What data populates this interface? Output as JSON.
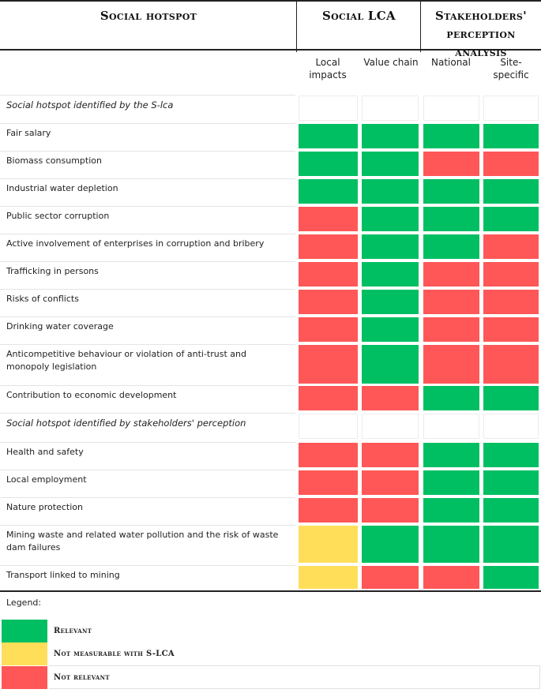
{
  "colors": {
    "relevant": "#00bf63",
    "not_measurable": "#ffde59",
    "not_relevant": "#ff5757"
  },
  "header": {
    "social_hotspot": "Social hotspot",
    "social_lca": "Social LCA",
    "stakeholders": "Stakeholders' perception analysis",
    "sub_local": "Local impacts",
    "sub_value_chain": "Value chain",
    "sub_national": "National",
    "sub_site": "Site-specific"
  },
  "rows": [
    {
      "label": "Social hotspot identified by the S-lca",
      "section": true,
      "cells": [
        "empty",
        "empty",
        "empty",
        "empty"
      ]
    },
    {
      "label": "Fair salary",
      "section": false,
      "cells": [
        "relevant",
        "relevant",
        "relevant",
        "relevant"
      ]
    },
    {
      "label": "Biomass consumption",
      "section": false,
      "cells": [
        "relevant",
        "relevant",
        "not_relevant",
        "not_relevant"
      ]
    },
    {
      "label": "Industrial water depletion",
      "section": false,
      "cells": [
        "relevant",
        "relevant",
        "relevant",
        "relevant"
      ]
    },
    {
      "label": "Public sector corruption",
      "section": false,
      "cells": [
        "not_relevant",
        "relevant",
        "relevant",
        "relevant"
      ]
    },
    {
      "label": "Active involvement of enterprises in corruption and bribery",
      "section": false,
      "cells": [
        "not_relevant",
        "relevant",
        "relevant",
        "not_relevant"
      ]
    },
    {
      "label": "Trafficking in persons",
      "section": false,
      "cells": [
        "not_relevant",
        "relevant",
        "not_relevant",
        "not_relevant"
      ]
    },
    {
      "label": "Risks of conflicts",
      "section": false,
      "cells": [
        "not_relevant",
        "relevant",
        "not_relevant",
        "not_relevant"
      ]
    },
    {
      "label": "Drinking water coverage",
      "section": false,
      "cells": [
        "not_relevant",
        "relevant",
        "not_relevant",
        "not_relevant"
      ]
    },
    {
      "label": "Anticompetitive behaviour or violation of anti-trust and monopoly legislation",
      "section": false,
      "cells": [
        "not_relevant",
        "relevant",
        "not_relevant",
        "not_relevant"
      ]
    },
    {
      "label": "Contribution to economic development",
      "section": false,
      "cells": [
        "not_relevant",
        "not_relevant",
        "relevant",
        "relevant"
      ]
    },
    {
      "label": "Social hotspot identified by stakeholders' perception",
      "section": true,
      "cells": [
        "empty",
        "empty",
        "empty",
        "empty"
      ]
    },
    {
      "label": "Health and safety",
      "section": false,
      "cells": [
        "not_relevant",
        "not_relevant",
        "relevant",
        "relevant"
      ]
    },
    {
      "label": "Local employment",
      "section": false,
      "cells": [
        "not_relevant",
        "not_relevant",
        "relevant",
        "relevant"
      ]
    },
    {
      "label": "Nature protection",
      "section": false,
      "cells": [
        "not_relevant",
        "not_relevant",
        "relevant",
        "relevant"
      ]
    },
    {
      "label": "Mining waste and related water pollution and the risk of waste dam failures",
      "section": false,
      "cells": [
        "not_measurable",
        "relevant",
        "relevant",
        "relevant"
      ]
    },
    {
      "label": "Transport linked to mining",
      "section": false,
      "cells": [
        "not_measurable",
        "not_relevant",
        "not_relevant",
        "relevant"
      ]
    }
  ],
  "legend": {
    "title": "Legend:",
    "items": [
      {
        "key": "relevant",
        "label": "Relevant"
      },
      {
        "key": "not_measurable",
        "label": "Not measurable with S-LCA"
      },
      {
        "key": "not_relevant",
        "label": "Not relevant"
      }
    ]
  }
}
